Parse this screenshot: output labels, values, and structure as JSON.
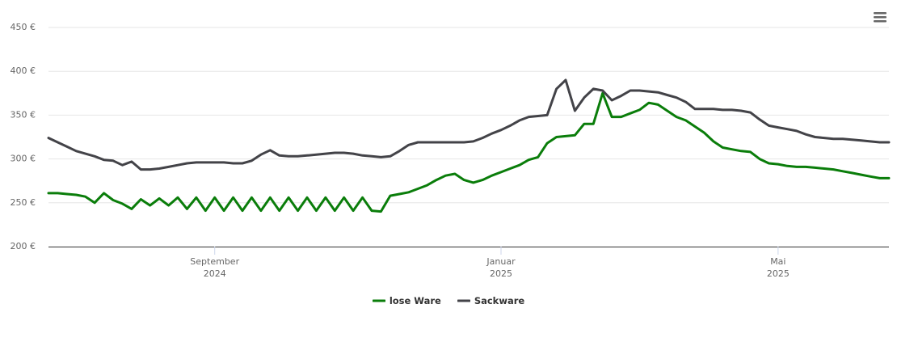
{
  "chart_data": {
    "type": "line",
    "categories": [
      null,
      null,
      null,
      null,
      null,
      null,
      null,
      null,
      null,
      null,
      null,
      null,
      null,
      null,
      null,
      null,
      null,
      null,
      "September 2024",
      null,
      null,
      null,
      null,
      null,
      null,
      null,
      null,
      null,
      null,
      null,
      null,
      null,
      null,
      null,
      null,
      null,
      null,
      null,
      null,
      null,
      null,
      null,
      null,
      null,
      null,
      null,
      null,
      null,
      null,
      "Januar 2025",
      null,
      null,
      null,
      null,
      null,
      null,
      null,
      null,
      null,
      null,
      null,
      null,
      null,
      null,
      null,
      null,
      null,
      null,
      null,
      null,
      null,
      null,
      null,
      null,
      null,
      null,
      null,
      null,
      null,
      "Mai 2025",
      null,
      null,
      null,
      null,
      null,
      null,
      null,
      null,
      null,
      null,
      null,
      null
    ],
    "series": [
      {
        "name": "lose Ware",
        "color": "#0a7d0a",
        "values": [
          261,
          261,
          260,
          259,
          257,
          250,
          261,
          253,
          249,
          243,
          254,
          247,
          255,
          247,
          256,
          243,
          256,
          241,
          256,
          241,
          256,
          241,
          256,
          241,
          256,
          241,
          256,
          241,
          256,
          241,
          256,
          241,
          256,
          241,
          256,
          241,
          240,
          258,
          260,
          262,
          266,
          270,
          276,
          281,
          283,
          276,
          273,
          276,
          281,
          285,
          289,
          293,
          299,
          302,
          318,
          325,
          326,
          327,
          340,
          340,
          375,
          348,
          348,
          352,
          356,
          364,
          362,
          355,
          348,
          344,
          337,
          330,
          320,
          313,
          311,
          309,
          308,
          300,
          295,
          294,
          292,
          291,
          291,
          290,
          289,
          288,
          286,
          284,
          282,
          280,
          278,
          278
        ]
      },
      {
        "name": "Sackware",
        "color": "#434348",
        "values": [
          324,
          319,
          314,
          309,
          306,
          303,
          299,
          298,
          293,
          297,
          288,
          288,
          289,
          291,
          293,
          295,
          296,
          296,
          296,
          296,
          295,
          295,
          298,
          305,
          310,
          304,
          303,
          303,
          304,
          305,
          306,
          307,
          307,
          306,
          304,
          303,
          302,
          303,
          309,
          316,
          319,
          319,
          319,
          319,
          319,
          319,
          320,
          324,
          329,
          333,
          338,
          344,
          348,
          349,
          350,
          380,
          390,
          355,
          370,
          380,
          378,
          367,
          372,
          378,
          378,
          377,
          376,
          373,
          370,
          365,
          357,
          357,
          357,
          356,
          356,
          355,
          353,
          345,
          338,
          336,
          334,
          332,
          328,
          325,
          324,
          323,
          323,
          322,
          321,
          320,
          319,
          319
        ]
      }
    ],
    "ylim": [
      200,
      450
    ],
    "yticks": [
      {
        "value": 200,
        "label": "200 €"
      },
      {
        "value": 250,
        "label": "250 €"
      },
      {
        "value": 300,
        "label": "300 €"
      },
      {
        "value": 350,
        "label": "350 €"
      },
      {
        "value": 400,
        "label": "400 €"
      },
      {
        "value": 450,
        "label": "450 €"
      }
    ],
    "grid": true
  }
}
